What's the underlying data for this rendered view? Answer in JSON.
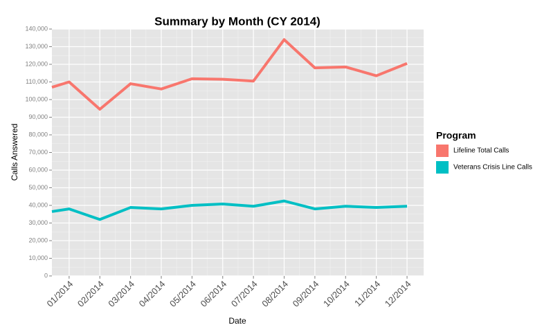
{
  "chart_data": {
    "type": "line",
    "title": "Summary by Month (CY 2014)",
    "x_label": "Date",
    "y_label": "Calls Answered",
    "legend_title": "Program",
    "legend_position": "right",
    "grid": true,
    "x": [
      0.44,
      1,
      2,
      3,
      4,
      5,
      6,
      7,
      8,
      9,
      10,
      11,
      12
    ],
    "xlim": [
      0.44,
      12.54
    ],
    "xticks": [
      {
        "value": 1,
        "label": "01/2014"
      },
      {
        "value": 2,
        "label": "02/2014"
      },
      {
        "value": 3,
        "label": "03/2014"
      },
      {
        "value": 4,
        "label": "04/2014"
      },
      {
        "value": 5,
        "label": "05/2014"
      },
      {
        "value": 6,
        "label": "06/2014"
      },
      {
        "value": 7,
        "label": "07/2014"
      },
      {
        "value": 8,
        "label": "08/2014"
      },
      {
        "value": 9,
        "label": "09/2014"
      },
      {
        "value": 10,
        "label": "10/2014"
      },
      {
        "value": 11,
        "label": "11/2014"
      },
      {
        "value": 12,
        "label": "12/2014"
      }
    ],
    "ylim": [
      0,
      140000
    ],
    "yticks": [
      0,
      {
        "value": 10000,
        "label": "10,000"
      },
      {
        "value": 20000,
        "label": "20,000"
      },
      {
        "value": 30000,
        "label": "30,000"
      },
      {
        "value": 40000,
        "label": "40,000"
      },
      {
        "value": 50000,
        "label": "50,000"
      },
      {
        "value": 60000,
        "label": "60,000"
      },
      {
        "value": 70000,
        "label": "70,000"
      },
      {
        "value": 80000,
        "label": "80,000"
      },
      {
        "value": 90000,
        "label": "90,000"
      },
      {
        "value": 100000,
        "label": "100,000"
      },
      {
        "value": 110000,
        "label": "110,000"
      },
      {
        "value": 120000,
        "label": "120,000"
      },
      {
        "value": 130000,
        "label": "130,000"
      },
      {
        "value": 140000,
        "label": "140,000"
      }
    ],
    "series": [
      {
        "name": "Lifeline Total Calls",
        "color": "#f8766d",
        "values": [
          107000,
          110000,
          94500,
          109000,
          106000,
          111800,
          111500,
          110500,
          134000,
          118000,
          118500,
          113500,
          120500
        ]
      },
      {
        "name": "Veterans Crisis Line Calls",
        "color": "#00bfc4",
        "values": [
          36500,
          38000,
          32000,
          38800,
          38000,
          40000,
          40800,
          39500,
          42500,
          38000,
          39500,
          38800,
          39500
        ]
      }
    ]
  }
}
